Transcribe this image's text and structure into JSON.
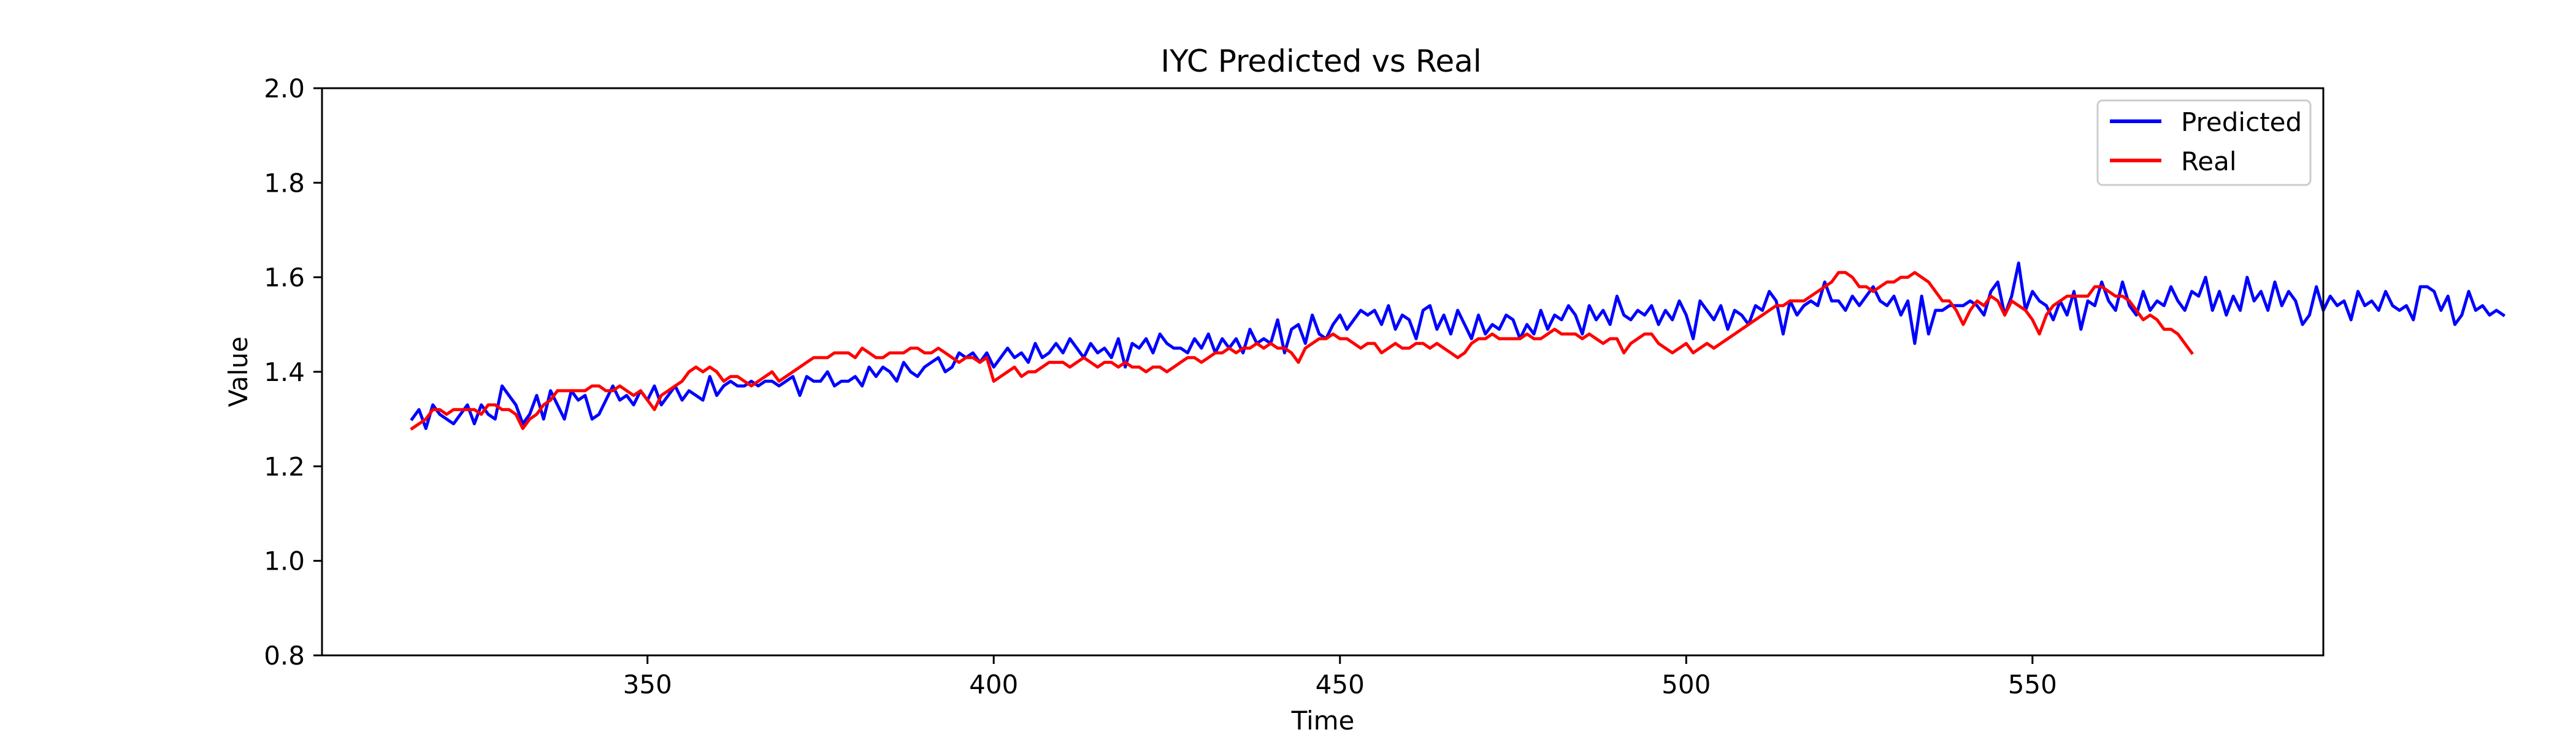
{
  "chart_data": {
    "type": "line",
    "title": "IYC Predicted vs Real",
    "xlabel": "Time",
    "ylabel": "Value",
    "xlim": [
      303,
      592
    ],
    "ylim": [
      0.8,
      2.0
    ],
    "xticks": [
      350,
      400,
      450,
      500,
      550
    ],
    "yticks": [
      0.8,
      1.0,
      1.2,
      1.4,
      1.6,
      1.8,
      2.0
    ],
    "grid": false,
    "legend_position": "top-right",
    "series": [
      {
        "name": "Predicted",
        "color": "#0000ff",
        "x_start": 316,
        "x_step": 1,
        "values": [
          1.3,
          1.32,
          1.28,
          1.33,
          1.31,
          1.3,
          1.29,
          1.31,
          1.33,
          1.29,
          1.33,
          1.31,
          1.3,
          1.37,
          1.35,
          1.33,
          1.29,
          1.31,
          1.35,
          1.3,
          1.36,
          1.33,
          1.3,
          1.36,
          1.34,
          1.35,
          1.3,
          1.31,
          1.34,
          1.37,
          1.34,
          1.35,
          1.33,
          1.36,
          1.34,
          1.37,
          1.33,
          1.35,
          1.37,
          1.34,
          1.36,
          1.35,
          1.34,
          1.39,
          1.35,
          1.37,
          1.38,
          1.37,
          1.37,
          1.38,
          1.37,
          1.38,
          1.38,
          1.37,
          1.38,
          1.39,
          1.35,
          1.39,
          1.38,
          1.38,
          1.4,
          1.37,
          1.38,
          1.38,
          1.39,
          1.37,
          1.41,
          1.39,
          1.41,
          1.4,
          1.38,
          1.42,
          1.4,
          1.39,
          1.41,
          1.42,
          1.43,
          1.4,
          1.41,
          1.44,
          1.43,
          1.44,
          1.42,
          1.44,
          1.41,
          1.43,
          1.45,
          1.43,
          1.44,
          1.42,
          1.46,
          1.43,
          1.44,
          1.46,
          1.44,
          1.47,
          1.45,
          1.43,
          1.46,
          1.44,
          1.45,
          1.43,
          1.47,
          1.41,
          1.46,
          1.45,
          1.47,
          1.44,
          1.48,
          1.46,
          1.45,
          1.45,
          1.44,
          1.47,
          1.45,
          1.48,
          1.44,
          1.47,
          1.45,
          1.47,
          1.44,
          1.49,
          1.46,
          1.47,
          1.46,
          1.51,
          1.44,
          1.49,
          1.5,
          1.46,
          1.52,
          1.48,
          1.47,
          1.5,
          1.52,
          1.49,
          1.51,
          1.53,
          1.52,
          1.53,
          1.5,
          1.54,
          1.49,
          1.52,
          1.51,
          1.47,
          1.53,
          1.54,
          1.49,
          1.52,
          1.48,
          1.53,
          1.5,
          1.47,
          1.52,
          1.48,
          1.5,
          1.49,
          1.52,
          1.51,
          1.47,
          1.5,
          1.48,
          1.53,
          1.49,
          1.52,
          1.51,
          1.54,
          1.52,
          1.48,
          1.54,
          1.51,
          1.53,
          1.5,
          1.56,
          1.52,
          1.51,
          1.53,
          1.52,
          1.54,
          1.5,
          1.53,
          1.51,
          1.55,
          1.52,
          1.47,
          1.55,
          1.53,
          1.51,
          1.54,
          1.49,
          1.53,
          1.52,
          1.5,
          1.54,
          1.53,
          1.57,
          1.55,
          1.48,
          1.55,
          1.52,
          1.54,
          1.55,
          1.54,
          1.59,
          1.55,
          1.55,
          1.53,
          1.56,
          1.54,
          1.56,
          1.58,
          1.55,
          1.54,
          1.56,
          1.52,
          1.55,
          1.46,
          1.56,
          1.48,
          1.53,
          1.53,
          1.54,
          1.54,
          1.54,
          1.55,
          1.54,
          1.52,
          1.57,
          1.59,
          1.52,
          1.56,
          1.63,
          1.53,
          1.57,
          1.55,
          1.54,
          1.51,
          1.55,
          1.52,
          1.57,
          1.49,
          1.55,
          1.54,
          1.59,
          1.55,
          1.53,
          1.59,
          1.54,
          1.52,
          1.57,
          1.53,
          1.55,
          1.54,
          1.58,
          1.55,
          1.53,
          1.57,
          1.56,
          1.6,
          1.53,
          1.57,
          1.52,
          1.56,
          1.53,
          1.6,
          1.55,
          1.57,
          1.53,
          1.59,
          1.54,
          1.57,
          1.55,
          1.5,
          1.52,
          1.58,
          1.53,
          1.56,
          1.54,
          1.55,
          1.51,
          1.57,
          1.54,
          1.55,
          1.53,
          1.57,
          1.54,
          1.53,
          1.54,
          1.51,
          1.58,
          1.58,
          1.57,
          1.53,
          1.56,
          1.5,
          1.52,
          1.57,
          1.53,
          1.54,
          1.52,
          1.53,
          1.52
        ]
      },
      {
        "name": "Real",
        "color": "#ff0000",
        "x_start": 316,
        "x_step": 1,
        "values": [
          1.28,
          1.29,
          1.3,
          1.32,
          1.32,
          1.31,
          1.32,
          1.32,
          1.32,
          1.32,
          1.31,
          1.33,
          1.33,
          1.32,
          1.32,
          1.31,
          1.28,
          1.3,
          1.31,
          1.33,
          1.34,
          1.36,
          1.36,
          1.36,
          1.36,
          1.36,
          1.37,
          1.37,
          1.36,
          1.36,
          1.37,
          1.36,
          1.35,
          1.36,
          1.34,
          1.32,
          1.35,
          1.36,
          1.37,
          1.38,
          1.4,
          1.41,
          1.4,
          1.41,
          1.4,
          1.38,
          1.39,
          1.39,
          1.38,
          1.37,
          1.38,
          1.39,
          1.4,
          1.38,
          1.39,
          1.4,
          1.41,
          1.42,
          1.43,
          1.43,
          1.43,
          1.44,
          1.44,
          1.44,
          1.43,
          1.45,
          1.44,
          1.43,
          1.43,
          1.44,
          1.44,
          1.44,
          1.45,
          1.45,
          1.44,
          1.44,
          1.45,
          1.44,
          1.43,
          1.42,
          1.43,
          1.43,
          1.42,
          1.43,
          1.38,
          1.39,
          1.4,
          1.41,
          1.39,
          1.4,
          1.4,
          1.41,
          1.42,
          1.42,
          1.42,
          1.41,
          1.42,
          1.43,
          1.42,
          1.41,
          1.42,
          1.42,
          1.41,
          1.42,
          1.41,
          1.41,
          1.4,
          1.41,
          1.41,
          1.4,
          1.41,
          1.42,
          1.43,
          1.43,
          1.42,
          1.43,
          1.44,
          1.44,
          1.45,
          1.44,
          1.45,
          1.45,
          1.46,
          1.45,
          1.46,
          1.45,
          1.45,
          1.44,
          1.42,
          1.45,
          1.46,
          1.47,
          1.47,
          1.48,
          1.47,
          1.47,
          1.46,
          1.45,
          1.46,
          1.46,
          1.44,
          1.45,
          1.46,
          1.45,
          1.45,
          1.46,
          1.46,
          1.45,
          1.46,
          1.45,
          1.44,
          1.43,
          1.44,
          1.46,
          1.47,
          1.47,
          1.48,
          1.47,
          1.47,
          1.47,
          1.47,
          1.48,
          1.47,
          1.47,
          1.48,
          1.49,
          1.48,
          1.48,
          1.48,
          1.47,
          1.48,
          1.47,
          1.46,
          1.47,
          1.47,
          1.44,
          1.46,
          1.47,
          1.48,
          1.48,
          1.46,
          1.45,
          1.44,
          1.45,
          1.46,
          1.44,
          1.45,
          1.46,
          1.45,
          1.46,
          1.47,
          1.48,
          1.49,
          1.5,
          1.51,
          1.52,
          1.53,
          1.54,
          1.54,
          1.55,
          1.55,
          1.55,
          1.56,
          1.57,
          1.58,
          1.59,
          1.61,
          1.61,
          1.6,
          1.58,
          1.58,
          1.57,
          1.58,
          1.59,
          1.59,
          1.6,
          1.6,
          1.61,
          1.6,
          1.59,
          1.57,
          1.55,
          1.55,
          1.53,
          1.5,
          1.53,
          1.55,
          1.54,
          1.56,
          1.55,
          1.52,
          1.55,
          1.54,
          1.53,
          1.51,
          1.48,
          1.52,
          1.54,
          1.55,
          1.56,
          1.56,
          1.56,
          1.56,
          1.58,
          1.58,
          1.57,
          1.56,
          1.56,
          1.55,
          1.53,
          1.51,
          1.52,
          1.51,
          1.49,
          1.49,
          1.48,
          1.46,
          1.44
        ]
      }
    ]
  }
}
